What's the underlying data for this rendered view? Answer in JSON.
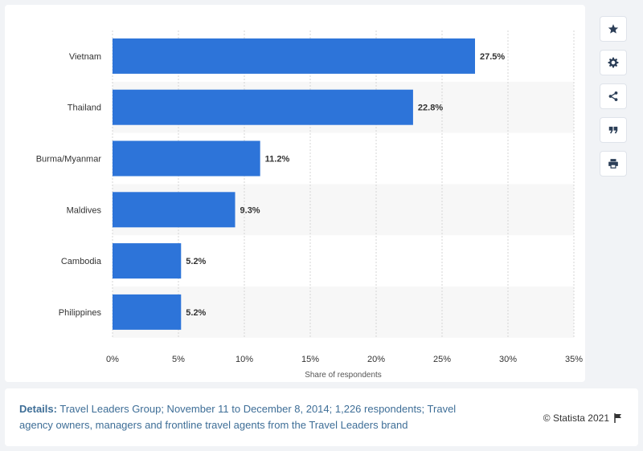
{
  "chart_data": {
    "type": "bar",
    "orientation": "horizontal",
    "categories": [
      "Vietnam",
      "Thailand",
      "Burma/Myanmar",
      "Maldives",
      "Cambodia",
      "Philippines"
    ],
    "values": [
      27.5,
      22.8,
      11.2,
      9.3,
      5.2,
      5.2
    ],
    "data_labels": [
      "27.5%",
      "22.8%",
      "11.2%",
      "9.3%",
      "5.2%",
      "5.2%"
    ],
    "title": "",
    "xlabel": "Share of respondents",
    "ylabel": "",
    "xlim": [
      0,
      35
    ],
    "x_ticks": [
      0,
      5,
      10,
      15,
      20,
      25,
      30,
      35
    ],
    "x_tick_labels": [
      "0%",
      "5%",
      "10%",
      "15%",
      "20%",
      "25%",
      "30%",
      "35%"
    ],
    "bar_color": "#2d74d9",
    "grid": true,
    "legend": "none"
  },
  "footer": {
    "details_label": "Details:",
    "details_text": "Travel Leaders Group; November 11 to December 8, 2014; 1,226 respondents; Travel agency owners, managers and frontline travel agents from the Travel Leaders brand",
    "credit": "© Statista 2021"
  },
  "tools": [
    "star-icon",
    "gear-icon",
    "share-icon",
    "quote-icon",
    "print-icon"
  ],
  "colors": {
    "accent": "#2d74d9",
    "icon": "#2b3e57",
    "link": "#3e6e97"
  }
}
